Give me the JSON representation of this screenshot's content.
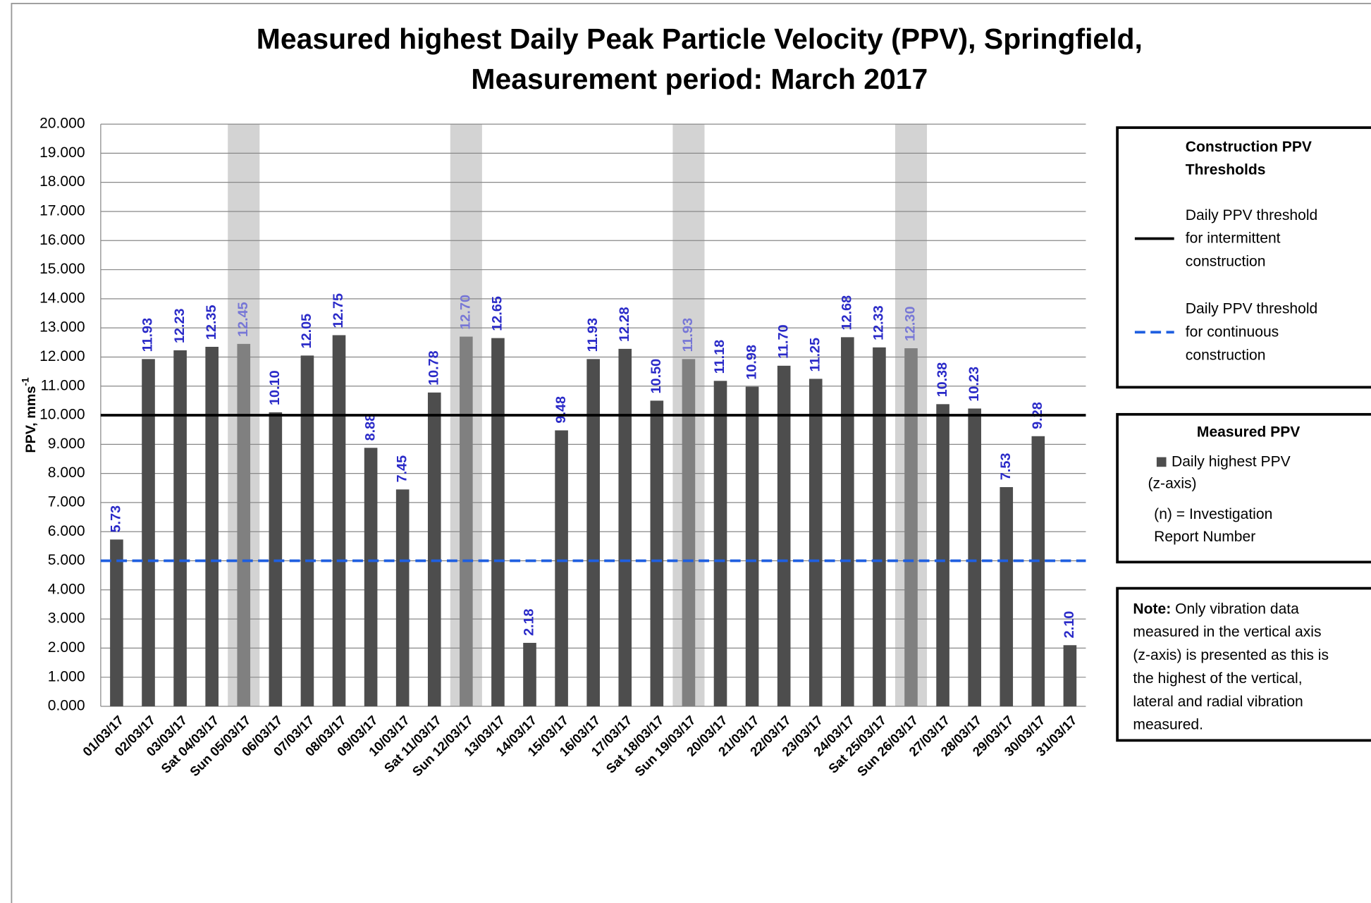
{
  "chart_data": {
    "type": "bar",
    "title": [
      "Measured highest Daily Peak Particle Velocity (PPV), Springfield,",
      "Measurement period: March 2017"
    ],
    "y_label": "PPV, mms",
    "y_label_sup": "-1",
    "categories": [
      "01/03/17",
      "02/03/17",
      "03/03/17",
      "Sat 04/03/17",
      "Sun 05/03/17",
      "06/03/17",
      "07/03/17",
      "08/03/17",
      "09/03/17",
      "10/03/17",
      "Sat 11/03/17",
      "Sun 12/03/17",
      "13/03/17",
      "14/03/17",
      "15/03/17",
      "16/03/17",
      "17/03/17",
      "Sat 18/03/17",
      "Sun 19/03/17",
      "20/03/17",
      "21/03/17",
      "22/03/17",
      "23/03/17",
      "24/03/17",
      "Sat 25/03/17",
      "Sun 26/03/17",
      "27/03/17",
      "28/03/17",
      "29/03/17",
      "30/03/17",
      "31/03/17"
    ],
    "values": [
      5.73,
      11.93,
      12.23,
      12.35,
      12.45,
      10.1,
      12.05,
      12.75,
      8.88,
      7.45,
      10.78,
      12.7,
      12.65,
      2.18,
      9.48,
      11.93,
      12.28,
      10.5,
      11.93,
      11.18,
      10.98,
      11.7,
      11.25,
      12.68,
      12.33,
      12.3,
      10.38,
      10.23,
      7.53,
      9.28,
      2.1
    ],
    "value_labels": [
      "5.73",
      "11.93",
      "12.23",
      "12.35",
      "12.45",
      "10.10",
      "12.05",
      "12.75",
      "8.88",
      "7.45",
      "10.78",
      "12.70",
      "12.65",
      "2.18",
      "9.48",
      "11.93",
      "12.28",
      "10.50",
      "11.93",
      "11.18",
      "10.98",
      "11.70",
      "11.25",
      "12.68",
      "12.33",
      "12.30",
      "10.38",
      "10.23",
      "7.53",
      "9.28",
      "2.10"
    ],
    "color": "#4d4d4d",
    "label_color": "#2a2ac8",
    "highlight_indices": [
      4,
      11,
      18,
      25
    ],
    "highlight_color": "#808080",
    "highlight_label_color": "#7777d6",
    "highlight_band_color": "#d3d3d3",
    "ylim": [
      0,
      20
    ],
    "yticks": [
      {
        "value": 0,
        "label": "0.000"
      },
      {
        "value": 1,
        "label": "1.000"
      },
      {
        "value": 2,
        "label": "2.000"
      },
      {
        "value": 3,
        "label": "3.000"
      },
      {
        "value": 4,
        "label": "4.000"
      },
      {
        "value": 5,
        "label": "5.000"
      },
      {
        "value": 6,
        "label": "6.000"
      },
      {
        "value": 7,
        "label": "7.000"
      },
      {
        "value": 8,
        "label": "8.000"
      },
      {
        "value": 9,
        "label": "9.000"
      },
      {
        "value": 10,
        "label": "10.000"
      },
      {
        "value": 11,
        "label": "11.000"
      },
      {
        "value": 12,
        "label": "12.000"
      },
      {
        "value": 13,
        "label": "13.000"
      },
      {
        "value": 14,
        "label": "14.000"
      },
      {
        "value": 15,
        "label": "15.000"
      },
      {
        "value": 16,
        "label": "16.000"
      },
      {
        "value": 17,
        "label": "17.000"
      },
      {
        "value": 18,
        "label": "18.000"
      },
      {
        "value": 19,
        "label": "19.000"
      },
      {
        "value": 20,
        "label": "20.000"
      }
    ],
    "grid": true,
    "thresholds_title": [
      "Construction PPV",
      "Thresholds"
    ],
    "thresholds": [
      {
        "label_lines": [
          "Daily PPV threshold",
          "for intermittent",
          "construction"
        ],
        "value": 10,
        "color": "#000000",
        "dashed": false
      },
      {
        "label_lines": [
          "Daily PPV threshold",
          "for continuous",
          "construction"
        ],
        "value": 5,
        "color": "#1f5fe0",
        "dashed": true
      }
    ],
    "measured_title": "Measured PPV",
    "measured_lines": [
      "Daily highest PPV",
      "(z-axis)"
    ],
    "report_lines": [
      "(n) = Investigation",
      "Report Number"
    ],
    "note_head": "Note:",
    "note_lines": [
      " Only vibration data",
      "measured in the vertical axis",
      "(z-axis) is presented as this is",
      "the highest of the vertical,",
      "lateral and radial vibration",
      "measured."
    ]
  }
}
